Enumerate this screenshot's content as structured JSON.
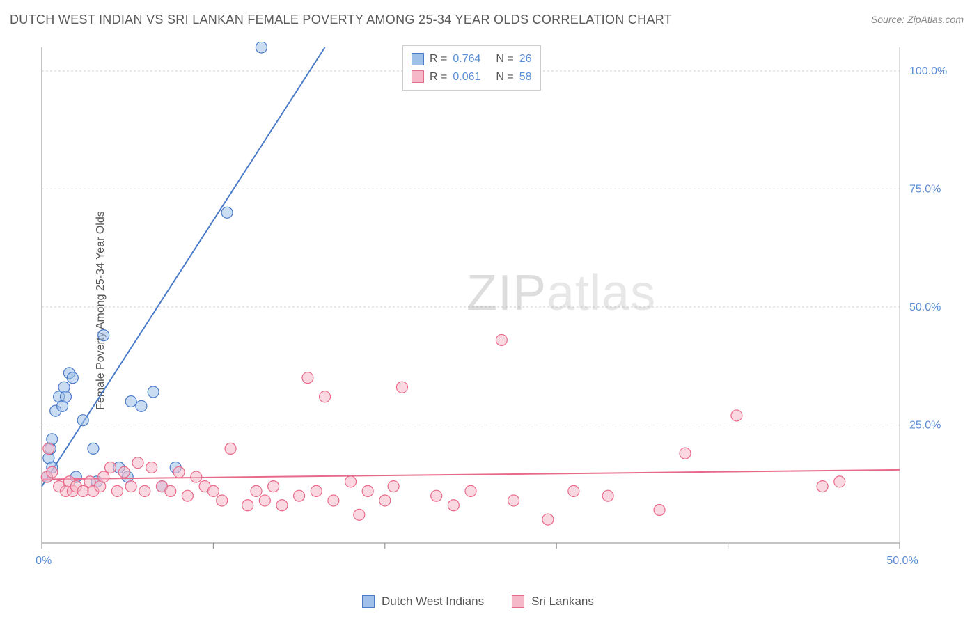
{
  "title": "DUTCH WEST INDIAN VS SRI LANKAN FEMALE POVERTY AMONG 25-34 YEAR OLDS CORRELATION CHART",
  "source": "Source: ZipAtlas.com",
  "y_axis_label": "Female Poverty Among 25-34 Year Olds",
  "watermark_zip": "ZIP",
  "watermark_atlas": "atlas",
  "chart": {
    "type": "scatter",
    "xlim": [
      0,
      50
    ],
    "ylim": [
      0,
      105
    ],
    "x_ticks": [
      0,
      10,
      20,
      30,
      40,
      50
    ],
    "x_tick_labels_shown": {
      "0": "0.0%",
      "50": "50.0%"
    },
    "y_ticks": [
      25,
      50,
      75,
      100
    ],
    "y_tick_labels": {
      "25": "25.0%",
      "50": "50.0%",
      "75": "75.0%",
      "100": "100.0%"
    },
    "grid_color": "#d0d0d0",
    "axis_color": "#888888",
    "background_color": "#ffffff",
    "tick_label_color": "#5a8dd6",
    "tick_label_fontsize": 16,
    "marker_radius": 8,
    "marker_opacity": 0.55,
    "line_width": 2,
    "series": [
      {
        "name": "Dutch West Indians",
        "color_stroke": "#4a7bc8",
        "color_fill": "#9fc0e8",
        "r": 0.764,
        "n": 26,
        "trend": {
          "x1": 0,
          "y1": 12,
          "x2": 16.5,
          "y2": 105
        },
        "points": [
          [
            0.3,
            14
          ],
          [
            0.4,
            18
          ],
          [
            0.5,
            20
          ],
          [
            0.6,
            16
          ],
          [
            0.6,
            22
          ],
          [
            0.8,
            28
          ],
          [
            1.0,
            31
          ],
          [
            1.2,
            29
          ],
          [
            1.3,
            33
          ],
          [
            1.4,
            31
          ],
          [
            1.6,
            36
          ],
          [
            1.8,
            35
          ],
          [
            2.0,
            14
          ],
          [
            2.4,
            26
          ],
          [
            3.0,
            20
          ],
          [
            3.2,
            13
          ],
          [
            3.6,
            44
          ],
          [
            4.5,
            16
          ],
          [
            5.2,
            30
          ],
          [
            5.8,
            29
          ],
          [
            6.5,
            32
          ],
          [
            7.0,
            12
          ],
          [
            7.8,
            16
          ],
          [
            10.8,
            70
          ],
          [
            12.8,
            105
          ],
          [
            5.0,
            14
          ]
        ]
      },
      {
        "name": "Sri Lankans",
        "color_stroke": "#e86a8a",
        "color_fill": "#f5b8c8",
        "r": 0.061,
        "n": 58,
        "trend": {
          "x1": 0,
          "y1": 13.5,
          "x2": 50,
          "y2": 15.5
        },
        "points": [
          [
            0.3,
            14
          ],
          [
            0.4,
            20
          ],
          [
            0.6,
            15
          ],
          [
            1.0,
            12
          ],
          [
            1.4,
            11
          ],
          [
            1.6,
            13
          ],
          [
            1.8,
            11
          ],
          [
            2.0,
            12
          ],
          [
            2.4,
            11
          ],
          [
            2.8,
            13
          ],
          [
            3.0,
            11
          ],
          [
            3.4,
            12
          ],
          [
            3.6,
            14
          ],
          [
            4.0,
            16
          ],
          [
            4.4,
            11
          ],
          [
            4.8,
            15
          ],
          [
            5.2,
            12
          ],
          [
            5.6,
            17
          ],
          [
            6.0,
            11
          ],
          [
            6.4,
            16
          ],
          [
            7.0,
            12
          ],
          [
            7.5,
            11
          ],
          [
            8.0,
            15
          ],
          [
            8.5,
            10
          ],
          [
            9.0,
            14
          ],
          [
            9.5,
            12
          ],
          [
            10.0,
            11
          ],
          [
            10.5,
            9
          ],
          [
            11.0,
            20
          ],
          [
            12.0,
            8
          ],
          [
            12.5,
            11
          ],
          [
            13.0,
            9
          ],
          [
            13.5,
            12
          ],
          [
            14.0,
            8
          ],
          [
            15.0,
            10
          ],
          [
            15.5,
            35
          ],
          [
            16.0,
            11
          ],
          [
            16.5,
            31
          ],
          [
            17.0,
            9
          ],
          [
            18.0,
            13
          ],
          [
            18.5,
            6
          ],
          [
            19.0,
            11
          ],
          [
            20.0,
            9
          ],
          [
            20.5,
            12
          ],
          [
            21.0,
            33
          ],
          [
            23.0,
            10
          ],
          [
            24.0,
            8
          ],
          [
            25.0,
            11
          ],
          [
            26.8,
            43
          ],
          [
            27.5,
            9
          ],
          [
            29.5,
            5
          ],
          [
            31.0,
            11
          ],
          [
            33.0,
            10
          ],
          [
            36.0,
            7
          ],
          [
            37.5,
            19
          ],
          [
            40.5,
            27
          ],
          [
            45.5,
            12
          ],
          [
            46.5,
            13
          ]
        ]
      }
    ]
  },
  "legend_top": [
    {
      "swatch_stroke": "#4a7bc8",
      "swatch_fill": "#9fc0e8",
      "r_label": "R =",
      "r": "0.764",
      "n_label": "N =",
      "n": "26"
    },
    {
      "swatch_stroke": "#e86a8a",
      "swatch_fill": "#f5b8c8",
      "r_label": "R =",
      "r": "0.061",
      "n_label": "N =",
      "n": "58"
    }
  ],
  "legend_bottom": [
    {
      "swatch_stroke": "#4a7bc8",
      "swatch_fill": "#9fc0e8",
      "label": "Dutch West Indians"
    },
    {
      "swatch_stroke": "#e86a8a",
      "swatch_fill": "#f5b8c8",
      "label": "Sri Lankans"
    }
  ]
}
